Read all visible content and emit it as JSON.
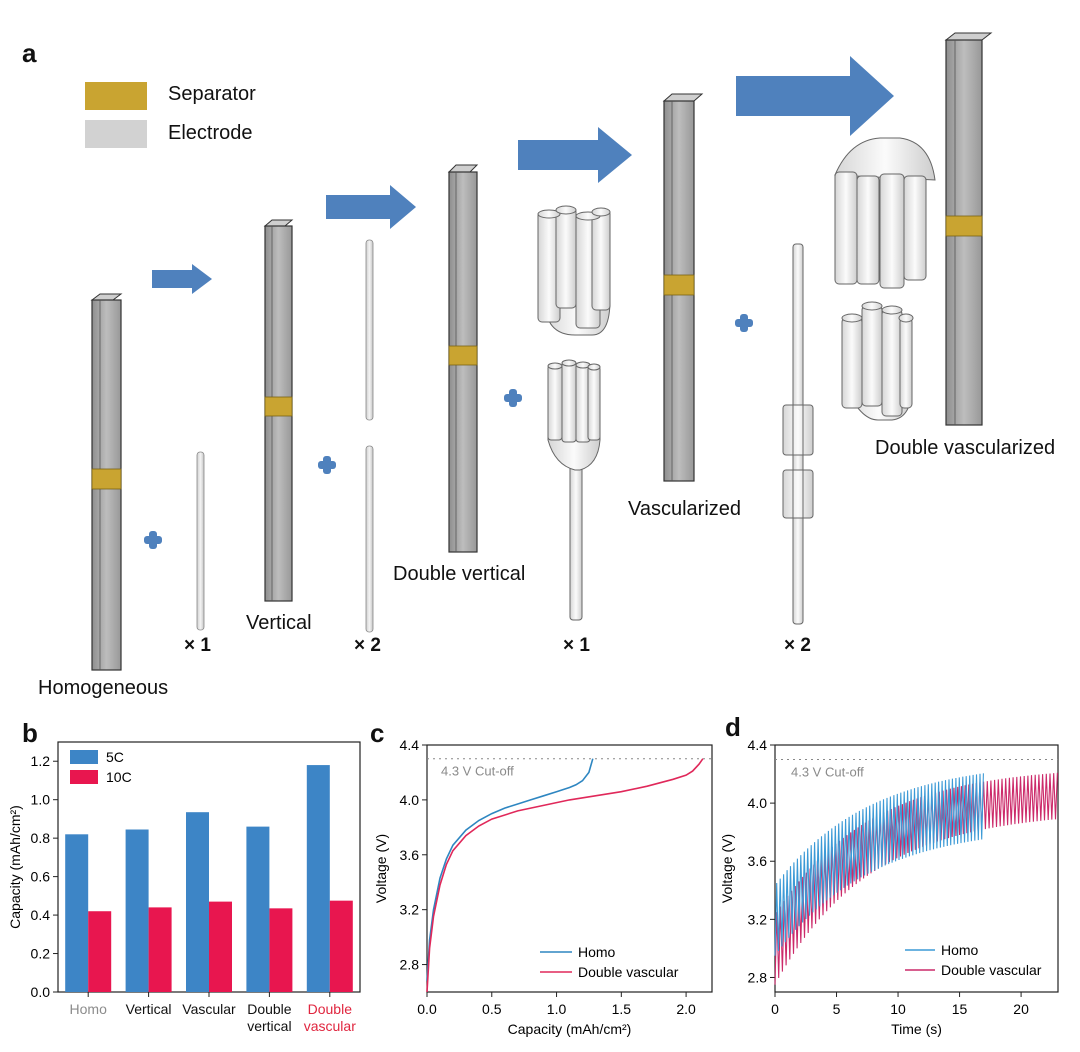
{
  "panel_a": {
    "letter": "a",
    "legend": [
      {
        "label": "Separator",
        "color": "#c9a431"
      },
      {
        "label": "Electrode",
        "color": "#d2d2d2"
      }
    ],
    "stages": [
      "Homogeneous",
      "Vertical",
      "Double vertical",
      "Vascularized",
      "Double vascularized"
    ],
    "multipliers": [
      "× 1",
      "× 2",
      "× 1",
      "× 2"
    ],
    "colors": {
      "arrow": "#4f81bd",
      "separator": "#c9a431",
      "column": "#a7a7a7"
    }
  },
  "chart_data": [
    {
      "panel": "b",
      "type": "bar",
      "ylabel": "Capacity (mAh/cm²)",
      "ylim": [
        0,
        1.3
      ],
      "yticks": [
        "0.0",
        "0.2",
        "0.4",
        "0.6",
        "0.8",
        "1.0",
        "1.2"
      ],
      "categories": [
        {
          "lines": [
            "Homo"
          ],
          "color": "#8c8c8c"
        },
        {
          "lines": [
            "Vertical"
          ],
          "color": "#111111"
        },
        {
          "lines": [
            "Vascular"
          ],
          "color": "#111111"
        },
        {
          "lines": [
            "Double",
            "vertical"
          ],
          "color": "#111111"
        },
        {
          "lines": [
            "Double",
            "vascular"
          ],
          "color": "#e0263f"
        }
      ],
      "series": [
        {
          "name": "5C",
          "color": "#3d85c6",
          "values": [
            0.82,
            0.845,
            0.935,
            0.86,
            1.18
          ]
        },
        {
          "name": "10C",
          "color": "#e8164f",
          "values": [
            0.42,
            0.44,
            0.47,
            0.435,
            0.475
          ]
        }
      ],
      "legend_position": "top-left"
    },
    {
      "panel": "c",
      "type": "line",
      "xlabel": "Capacity (mAh/cm²)",
      "ylabel": "Voltage (V)",
      "xlim": [
        0,
        2.2
      ],
      "ylim": [
        2.6,
        4.4
      ],
      "xticks": [
        "0.0",
        "0.5",
        "1.0",
        "1.5",
        "2.0"
      ],
      "yticks": [
        "2.8",
        "3.2",
        "3.6",
        "4.0",
        "4.4"
      ],
      "cutoff": {
        "value": 4.3,
        "label": "4.3 V Cut-off"
      },
      "series": [
        {
          "name": "Homo",
          "color": "#2e86c1",
          "x": [
            0.0,
            0.02,
            0.05,
            0.1,
            0.15,
            0.2,
            0.3,
            0.4,
            0.5,
            0.6,
            0.7,
            0.8,
            0.9,
            1.0,
            1.1,
            1.15,
            1.2,
            1.25,
            1.28
          ],
          "y": [
            2.68,
            2.98,
            3.2,
            3.43,
            3.57,
            3.67,
            3.78,
            3.85,
            3.9,
            3.94,
            3.97,
            4.0,
            4.03,
            4.06,
            4.09,
            4.11,
            4.14,
            4.2,
            4.3
          ]
        },
        {
          "name": "Double vascular",
          "color": "#e0285a",
          "x": [
            0.0,
            0.02,
            0.05,
            0.1,
            0.15,
            0.2,
            0.3,
            0.4,
            0.5,
            0.7,
            0.9,
            1.1,
            1.3,
            1.5,
            1.7,
            1.9,
            2.0,
            2.05,
            2.1,
            2.13
          ],
          "y": [
            2.6,
            2.92,
            3.15,
            3.38,
            3.53,
            3.63,
            3.74,
            3.81,
            3.86,
            3.92,
            3.96,
            4.0,
            4.03,
            4.06,
            4.1,
            4.15,
            4.18,
            4.21,
            4.26,
            4.3
          ]
        }
      ],
      "legend_position": "bottom-right"
    },
    {
      "panel": "d",
      "type": "line",
      "xlabel": "Time (s)",
      "ylabel": "Voltage (V)",
      "xlim": [
        0,
        23
      ],
      "ylim": [
        2.7,
        4.4
      ],
      "xticks": [
        "0",
        "5",
        "10",
        "15",
        "20"
      ],
      "yticks": [
        "2.8",
        "3.2",
        "3.6",
        "4.0",
        "4.4"
      ],
      "cutoff": {
        "value": 4.3,
        "label": "4.3 V Cut-off"
      },
      "series": [
        {
          "name": "Homo",
          "color": "#3c9ad6",
          "t_end": 17,
          "period": 0.28,
          "upper_start": 3.45,
          "upper_end": 4.3,
          "lower_start": 2.95,
          "lower_end": 3.85
        },
        {
          "name": "Double vascular",
          "color": "#cc2a6a",
          "t_end": 23,
          "period": 0.3,
          "upper_start": 3.25,
          "upper_end": 4.26,
          "lower_start": 2.75,
          "lower_end": 3.95
        }
      ],
      "legend_position": "bottom-left"
    }
  ]
}
